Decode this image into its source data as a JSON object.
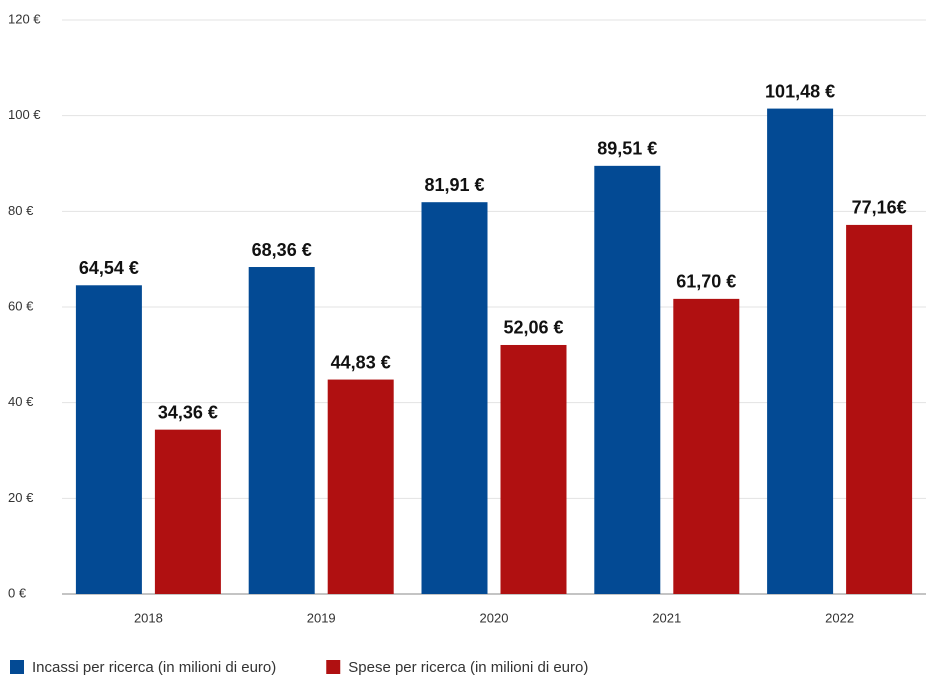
{
  "chart_data": {
    "type": "bar",
    "categories": [
      "2018",
      "2019",
      "2020",
      "2021",
      "2022"
    ],
    "series": [
      {
        "name": "Incassi per ricerca (in milioni di euro)",
        "color": "#034a94",
        "values": [
          64.54,
          68.36,
          81.91,
          89.51,
          101.48
        ],
        "value_labels": [
          "64,54 €",
          "68,36 €",
          "81,91 €",
          "89,51 €",
          "101,48 €"
        ]
      },
      {
        "name": "Spese per ricerca (in milioni di euro)",
        "color": "#b01011",
        "values": [
          34.36,
          44.83,
          52.06,
          61.7,
          77.16
        ],
        "value_labels": [
          "34,36 €",
          "44,83 €",
          "52,06 €",
          "61,70 €",
          "77,16€"
        ]
      }
    ],
    "ylim": [
      0,
      120
    ],
    "yticks": [
      {
        "value": 0,
        "label": "0 €"
      },
      {
        "value": 20,
        "label": "20 €"
      },
      {
        "value": 40,
        "label": "40 €"
      },
      {
        "value": 60,
        "label": "60 €"
      },
      {
        "value": 80,
        "label": "80 €"
      },
      {
        "value": 100,
        "label": "100 €"
      },
      {
        "value": 120,
        "label": "120 €"
      }
    ],
    "grid": true,
    "legend": "bottom"
  }
}
